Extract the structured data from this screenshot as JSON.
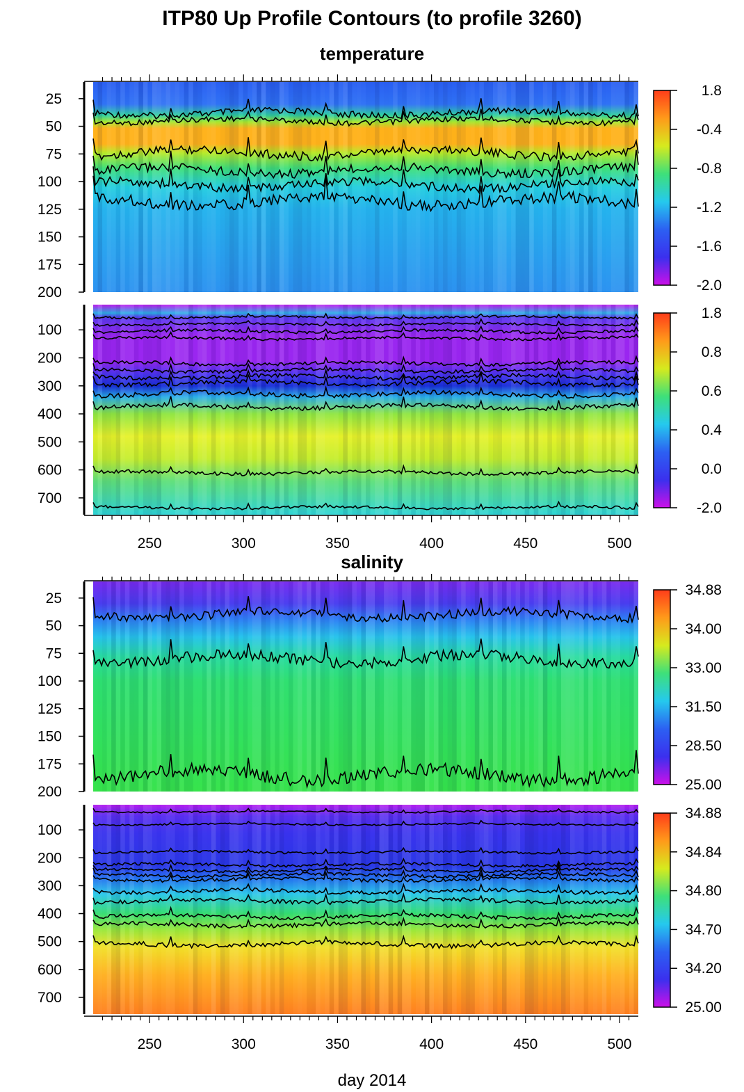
{
  "title": "ITP80 Up Profile Contours (to profile 3260)",
  "chart_data": {
    "type": "heatmap",
    "title": "ITP80 Up Profile Contours (to profile 3260)",
    "xlabel": "day 2014",
    "x_ticks": [
      250,
      300,
      350,
      400,
      450,
      500
    ],
    "xlim": [
      220,
      510
    ],
    "sections": [
      {
        "name": "temperature",
        "panels": [
          {
            "id": "temp-upper",
            "ylim": [
              200,
              10
            ],
            "y_ticks": [
              25,
              50,
              75,
              100,
              125,
              150,
              175,
              200
            ],
            "colorbar_labels": [
              "1.8",
              "-0.4",
              "-0.8",
              "-1.2",
              "-1.6",
              "-2.0"
            ],
            "bands": [
              {
                "depth": 10,
                "color": "#2a5ff2"
              },
              {
                "depth": 30,
                "color": "#2f72f5"
              },
              {
                "depth": 40,
                "color": "#2fd0a0"
              },
              {
                "depth": 46,
                "color": "#a6e830"
              },
              {
                "depth": 52,
                "color": "#ffb21a"
              },
              {
                "depth": 66,
                "color": "#ffb21a"
              },
              {
                "depth": 74,
                "color": "#b8ea28"
              },
              {
                "depth": 88,
                "color": "#3fe07a"
              },
              {
                "depth": 105,
                "color": "#26cfe0"
              },
              {
                "depth": 125,
                "color": "#25b3ee"
              },
              {
                "depth": 200,
                "color": "#2d93f1"
              }
            ],
            "contours": [
              {
                "base": 38,
                "amp": 3
              },
              {
                "base": 45,
                "amp": 2.5
              },
              {
                "base": 74,
                "amp": 4
              },
              {
                "base": 90,
                "amp": 4
              },
              {
                "base": 103,
                "amp": 4
              },
              {
                "base": 118,
                "amp": 5
              }
            ]
          },
          {
            "id": "temp-lower",
            "ylim": [
              760,
              10
            ],
            "y_ticks": [
              100,
              200,
              300,
              400,
              500,
              600,
              700
            ],
            "colorbar_labels": [
              "1.8",
              "0.8",
              "0.6",
              "0.4",
              "0.0",
              "-2.0"
            ],
            "bands": [
              {
                "depth": 10,
                "color": "#c01cf0"
              },
              {
                "depth": 40,
                "color": "#2fb0e8"
              },
              {
                "depth": 55,
                "color": "#5b3df0"
              },
              {
                "depth": 120,
                "color": "#9a26f0"
              },
              {
                "depth": 210,
                "color": "#9a26f0"
              },
              {
                "depth": 260,
                "color": "#4a35f0"
              },
              {
                "depth": 300,
                "color": "#1a30d8"
              },
              {
                "depth": 340,
                "color": "#2ab0e8"
              },
              {
                "depth": 400,
                "color": "#8fe640"
              },
              {
                "depth": 480,
                "color": "#e6f228"
              },
              {
                "depth": 560,
                "color": "#c5ee2c"
              },
              {
                "depth": 640,
                "color": "#5fe07a"
              },
              {
                "depth": 760,
                "color": "#30d6d6"
              }
            ],
            "contours": [
              {
                "base": 55,
                "amp": 4
              },
              {
                "base": 80,
                "amp": 4
              },
              {
                "base": 105,
                "amp": 5
              },
              {
                "base": 130,
                "amp": 5
              },
              {
                "base": 220,
                "amp": 6
              },
              {
                "base": 245,
                "amp": 6
              },
              {
                "base": 268,
                "amp": 7
              },
              {
                "base": 290,
                "amp": 8
              },
              {
                "base": 330,
                "amp": 8
              },
              {
                "base": 375,
                "amp": 8
              },
              {
                "base": 610,
                "amp": 6
              },
              {
                "base": 735,
                "amp": 5
              }
            ]
          }
        ]
      },
      {
        "name": "salinity",
        "panels": [
          {
            "id": "sal-upper",
            "ylim": [
              200,
              10
            ],
            "y_ticks": [
              25,
              50,
              75,
              100,
              125,
              150,
              175,
              200
            ],
            "colorbar_labels": [
              "34.88",
              "34.00",
              "33.00",
              "31.50",
              "28.50",
              "25.00"
            ],
            "bands": [
              {
                "depth": 10,
                "color": "#7a2cf0"
              },
              {
                "depth": 30,
                "color": "#4a3ef0"
              },
              {
                "depth": 44,
                "color": "#2f7ff5"
              },
              {
                "depth": 60,
                "color": "#27c4ec"
              },
              {
                "depth": 78,
                "color": "#28dca0"
              },
              {
                "depth": 100,
                "color": "#2ee070"
              },
              {
                "depth": 200,
                "color": "#35e34a"
              }
            ],
            "contours": [
              {
                "base": 40,
                "amp": 4
              },
              {
                "base": 80,
                "amp": 5
              },
              {
                "base": 185,
                "amp": 6
              }
            ]
          },
          {
            "id": "sal-lower",
            "ylim": [
              760,
              10
            ],
            "y_ticks": [
              100,
              200,
              300,
              400,
              500,
              600,
              700
            ],
            "colorbar_labels": [
              "34.88",
              "34.84",
              "34.80",
              "34.70",
              "34.20",
              "25.00"
            ],
            "bands": [
              {
                "depth": 10,
                "color": "#b51ef0"
              },
              {
                "depth": 50,
                "color": "#5a2ef0"
              },
              {
                "depth": 110,
                "color": "#3a33ee"
              },
              {
                "depth": 230,
                "color": "#2a38e6"
              },
              {
                "depth": 270,
                "color": "#246cf0"
              },
              {
                "depth": 330,
                "color": "#2ac7ea"
              },
              {
                "depth": 400,
                "color": "#34dd70"
              },
              {
                "depth": 460,
                "color": "#9ce83a"
              },
              {
                "depth": 520,
                "color": "#f2e028"
              },
              {
                "depth": 620,
                "color": "#ffb020"
              },
              {
                "depth": 760,
                "color": "#ff8020"
              }
            ],
            "contours": [
              {
                "base": 35,
                "amp": 3
              },
              {
                "base": 80,
                "amp": 3
              },
              {
                "base": 180,
                "amp": 4
              },
              {
                "base": 225,
                "amp": 5
              },
              {
                "base": 245,
                "amp": 5
              },
              {
                "base": 262,
                "amp": 6
              },
              {
                "base": 278,
                "amp": 6
              },
              {
                "base": 320,
                "amp": 7
              },
              {
                "base": 355,
                "amp": 7
              },
              {
                "base": 410,
                "amp": 7
              },
              {
                "base": 440,
                "amp": 7
              },
              {
                "base": 510,
                "amp": 8
              }
            ]
          }
        ]
      }
    ]
  }
}
